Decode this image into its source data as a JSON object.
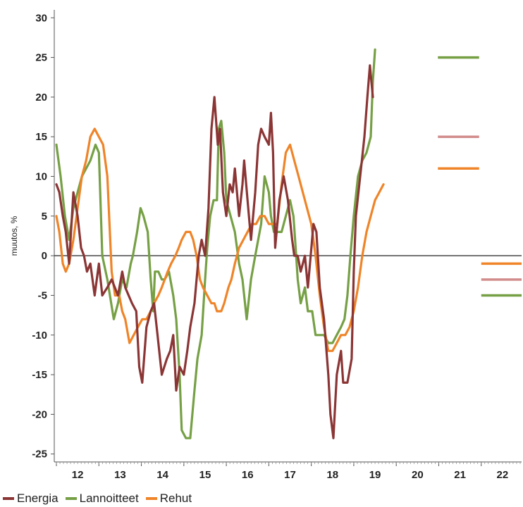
{
  "chart_data": {
    "type": "line",
    "ylabel": "muutos, %",
    "ylim": [
      -26,
      31
    ],
    "yticks": [
      30,
      25,
      20,
      15,
      10,
      5,
      0,
      -5,
      -10,
      -15,
      -20,
      -25
    ],
    "xlim": [
      2011.95,
      2022.95
    ],
    "xtick_labels": [
      "12",
      "13",
      "14",
      "15",
      "16",
      "17",
      "18",
      "19",
      "20",
      "21",
      "22"
    ],
    "series": [
      {
        "name": "Energia",
        "color": "#8b3535",
        "points": [
          [
            2012.0,
            9
          ],
          [
            2012.07,
            8
          ],
          [
            2012.15,
            5
          ],
          [
            2012.22,
            3
          ],
          [
            2012.3,
            -1
          ],
          [
            2012.4,
            8
          ],
          [
            2012.5,
            5
          ],
          [
            2012.58,
            1
          ],
          [
            2012.65,
            0
          ],
          [
            2012.72,
            -2
          ],
          [
            2012.8,
            -1
          ],
          [
            2012.9,
            -5
          ],
          [
            2013.0,
            -1
          ],
          [
            2013.08,
            -5
          ],
          [
            2013.2,
            -4
          ],
          [
            2013.3,
            -3
          ],
          [
            2013.45,
            -5
          ],
          [
            2013.55,
            -2
          ],
          [
            2013.62,
            -4
          ],
          [
            2013.7,
            -5
          ],
          [
            2013.78,
            -6
          ],
          [
            2013.88,
            -7
          ],
          [
            2013.95,
            -14
          ],
          [
            2014.02,
            -16
          ],
          [
            2014.12,
            -9
          ],
          [
            2014.22,
            -7
          ],
          [
            2014.3,
            -6
          ],
          [
            2014.38,
            -10
          ],
          [
            2014.48,
            -15
          ],
          [
            2014.6,
            -13
          ],
          [
            2014.68,
            -12
          ],
          [
            2014.75,
            -10
          ],
          [
            2014.82,
            -17
          ],
          [
            2014.9,
            -14
          ],
          [
            2015.0,
            -15
          ],
          [
            2015.08,
            -12
          ],
          [
            2015.15,
            -9
          ],
          [
            2015.25,
            -6
          ],
          [
            2015.35,
            0
          ],
          [
            2015.42,
            2
          ],
          [
            2015.5,
            0
          ],
          [
            2015.58,
            6
          ],
          [
            2015.65,
            16
          ],
          [
            2015.72,
            20
          ],
          [
            2015.8,
            14
          ],
          [
            2015.85,
            16
          ],
          [
            2015.92,
            8
          ],
          [
            2016.0,
            5
          ],
          [
            2016.08,
            9
          ],
          [
            2016.15,
            8
          ],
          [
            2016.2,
            11
          ],
          [
            2016.3,
            5
          ],
          [
            2016.38,
            9
          ],
          [
            2016.42,
            12
          ],
          [
            2016.5,
            7
          ],
          [
            2016.58,
            2
          ],
          [
            2016.68,
            8
          ],
          [
            2016.75,
            14
          ],
          [
            2016.82,
            16
          ],
          [
            2016.9,
            15
          ],
          [
            2017.0,
            14
          ],
          [
            2017.05,
            18
          ],
          [
            2017.1,
            13
          ],
          [
            2017.15,
            1
          ],
          [
            2017.25,
            7
          ],
          [
            2017.35,
            10
          ],
          [
            2017.45,
            7
          ],
          [
            2017.55,
            2
          ],
          [
            2017.6,
            0
          ],
          [
            2017.68,
            0
          ],
          [
            2017.75,
            -2
          ],
          [
            2017.85,
            0
          ],
          [
            2017.92,
            -4
          ],
          [
            2017.97,
            -1
          ],
          [
            2018.05,
            4
          ],
          [
            2018.12,
            3
          ],
          [
            2018.2,
            -4
          ],
          [
            2018.3,
            -8
          ],
          [
            2018.4,
            -15
          ],
          [
            2018.45,
            -20
          ],
          [
            2018.52,
            -23
          ],
          [
            2018.6,
            -15
          ],
          [
            2018.7,
            -12
          ],
          [
            2018.75,
            -16
          ],
          [
            2018.85,
            -16
          ],
          [
            2018.95,
            -13
          ],
          [
            2019.0,
            -2
          ],
          [
            2019.05,
            5
          ],
          [
            2019.15,
            10
          ],
          [
            2019.25,
            15
          ],
          [
            2019.32,
            20
          ],
          [
            2019.38,
            24
          ],
          [
            2019.45,
            20
          ]
        ]
      },
      {
        "name": "Lannoitteet",
        "color": "#76a045",
        "points": [
          [
            2012.0,
            14
          ],
          [
            2012.1,
            10
          ],
          [
            2012.2,
            5
          ],
          [
            2012.3,
            2
          ],
          [
            2012.4,
            6
          ],
          [
            2012.5,
            8
          ],
          [
            2012.6,
            10
          ],
          [
            2012.7,
            11
          ],
          [
            2012.8,
            12
          ],
          [
            2012.92,
            14
          ],
          [
            2013.0,
            13
          ],
          [
            2013.08,
            0
          ],
          [
            2013.2,
            -3
          ],
          [
            2013.35,
            -8
          ],
          [
            2013.45,
            -6
          ],
          [
            2013.55,
            -3
          ],
          [
            2013.65,
            -4
          ],
          [
            2013.75,
            -1
          ],
          [
            2013.8,
            0
          ],
          [
            2013.9,
            3
          ],
          [
            2013.98,
            6
          ],
          [
            2014.05,
            5
          ],
          [
            2014.15,
            3
          ],
          [
            2014.22,
            -3
          ],
          [
            2014.28,
            -7
          ],
          [
            2014.32,
            -2
          ],
          [
            2014.4,
            -2
          ],
          [
            2014.48,
            -3
          ],
          [
            2014.55,
            -3
          ],
          [
            2014.65,
            -2
          ],
          [
            2014.75,
            -5
          ],
          [
            2014.82,
            -8
          ],
          [
            2014.9,
            -15
          ],
          [
            2014.95,
            -22
          ],
          [
            2015.05,
            -23
          ],
          [
            2015.15,
            -23
          ],
          [
            2015.25,
            -17
          ],
          [
            2015.32,
            -13
          ],
          [
            2015.42,
            -10
          ],
          [
            2015.5,
            -3
          ],
          [
            2015.55,
            1
          ],
          [
            2015.62,
            5
          ],
          [
            2015.7,
            7
          ],
          [
            2015.78,
            7
          ],
          [
            2015.82,
            16
          ],
          [
            2015.88,
            17
          ],
          [
            2015.95,
            13
          ],
          [
            2016.0,
            7
          ],
          [
            2016.05,
            6
          ],
          [
            2016.1,
            5
          ],
          [
            2016.2,
            3
          ],
          [
            2016.3,
            -1
          ],
          [
            2016.38,
            -3
          ],
          [
            2016.48,
            -8
          ],
          [
            2016.58,
            -3
          ],
          [
            2016.68,
            0
          ],
          [
            2016.75,
            2
          ],
          [
            2016.82,
            4
          ],
          [
            2016.9,
            10
          ],
          [
            2017.0,
            8
          ],
          [
            2017.05,
            5
          ],
          [
            2017.12,
            3
          ],
          [
            2017.2,
            3
          ],
          [
            2017.3,
            3
          ],
          [
            2017.4,
            5
          ],
          [
            2017.5,
            7
          ],
          [
            2017.58,
            5
          ],
          [
            2017.62,
            2
          ],
          [
            2017.68,
            -3
          ],
          [
            2017.75,
            -6
          ],
          [
            2017.85,
            -4
          ],
          [
            2017.92,
            -7
          ],
          [
            2018.02,
            -7
          ],
          [
            2018.1,
            -10
          ],
          [
            2018.2,
            -10
          ],
          [
            2018.3,
            -10
          ],
          [
            2018.4,
            -11
          ],
          [
            2018.5,
            -11
          ],
          [
            2018.6,
            -10
          ],
          [
            2018.7,
            -9
          ],
          [
            2018.78,
            -8
          ],
          [
            2018.85,
            -5
          ],
          [
            2018.92,
            0
          ],
          [
            2019.0,
            5
          ],
          [
            2019.1,
            10
          ],
          [
            2019.2,
            12
          ],
          [
            2019.3,
            13
          ],
          [
            2019.4,
            15
          ],
          [
            2019.45,
            22
          ],
          [
            2019.5,
            26
          ]
        ]
      },
      {
        "name": "Rehut",
        "color": "#ef8428",
        "points": [
          [
            2012.0,
            5
          ],
          [
            2012.07,
            3
          ],
          [
            2012.15,
            -1
          ],
          [
            2012.22,
            -2
          ],
          [
            2012.3,
            -1
          ],
          [
            2012.4,
            2
          ],
          [
            2012.5,
            6
          ],
          [
            2012.6,
            10
          ],
          [
            2012.7,
            12
          ],
          [
            2012.8,
            15
          ],
          [
            2012.9,
            16
          ],
          [
            2013.0,
            15
          ],
          [
            2013.1,
            14
          ],
          [
            2013.2,
            10
          ],
          [
            2013.3,
            -2
          ],
          [
            2013.38,
            -5
          ],
          [
            2013.48,
            -5
          ],
          [
            2013.55,
            -7
          ],
          [
            2013.62,
            -8
          ],
          [
            2013.72,
            -11
          ],
          [
            2013.82,
            -10
          ],
          [
            2013.92,
            -9
          ],
          [
            2014.02,
            -8
          ],
          [
            2014.12,
            -8
          ],
          [
            2014.22,
            -7
          ],
          [
            2014.3,
            -6
          ],
          [
            2014.4,
            -5
          ],
          [
            2014.48,
            -4
          ],
          [
            2014.55,
            -3
          ],
          [
            2014.62,
            -2
          ],
          [
            2014.7,
            -1
          ],
          [
            2014.8,
            0
          ],
          [
            2014.88,
            1
          ],
          [
            2014.95,
            2
          ],
          [
            2015.05,
            3
          ],
          [
            2015.15,
            3
          ],
          [
            2015.22,
            2
          ],
          [
            2015.3,
            0
          ],
          [
            2015.38,
            -3
          ],
          [
            2015.45,
            -4
          ],
          [
            2015.55,
            -5
          ],
          [
            2015.65,
            -6
          ],
          [
            2015.72,
            -6
          ],
          [
            2015.78,
            -7
          ],
          [
            2015.88,
            -7
          ],
          [
            2015.95,
            -6
          ],
          [
            2016.05,
            -4
          ],
          [
            2016.12,
            -3
          ],
          [
            2016.2,
            -1
          ],
          [
            2016.3,
            1
          ],
          [
            2016.4,
            2
          ],
          [
            2016.5,
            3
          ],
          [
            2016.6,
            4
          ],
          [
            2016.7,
            4
          ],
          [
            2016.8,
            5
          ],
          [
            2016.9,
            5
          ],
          [
            2017.0,
            4
          ],
          [
            2017.1,
            4
          ],
          [
            2017.2,
            4
          ],
          [
            2017.3,
            9
          ],
          [
            2017.4,
            13
          ],
          [
            2017.5,
            14
          ],
          [
            2017.6,
            12
          ],
          [
            2017.7,
            10
          ],
          [
            2017.8,
            8
          ],
          [
            2017.9,
            6
          ],
          [
            2018.0,
            4
          ],
          [
            2018.1,
            0
          ],
          [
            2018.2,
            -5
          ],
          [
            2018.3,
            -9
          ],
          [
            2018.4,
            -12
          ],
          [
            2018.5,
            -12
          ],
          [
            2018.6,
            -11
          ],
          [
            2018.7,
            -10
          ],
          [
            2018.8,
            -10
          ],
          [
            2018.9,
            -9
          ],
          [
            2019.0,
            -7
          ],
          [
            2019.1,
            -4
          ],
          [
            2019.2,
            0
          ],
          [
            2019.3,
            3
          ],
          [
            2019.4,
            5
          ],
          [
            2019.5,
            7
          ],
          [
            2019.6,
            8
          ],
          [
            2019.7,
            9
          ]
        ]
      }
    ],
    "forecast_2021": [
      {
        "series": "Lannoitteet",
        "value": 25,
        "color": "#76a045"
      },
      {
        "series": "Energia",
        "value": 15,
        "color": "#d28c8c"
      },
      {
        "series": "Rehut",
        "value": 11,
        "color": "#ef8428"
      }
    ],
    "forecast_2022": [
      {
        "series": "Rehut",
        "value": -1,
        "color": "#ef8428"
      },
      {
        "series": "Energia",
        "value": -3,
        "color": "#d28c8c"
      },
      {
        "series": "Lannoitteet",
        "value": -5,
        "color": "#76a045"
      }
    ]
  }
}
